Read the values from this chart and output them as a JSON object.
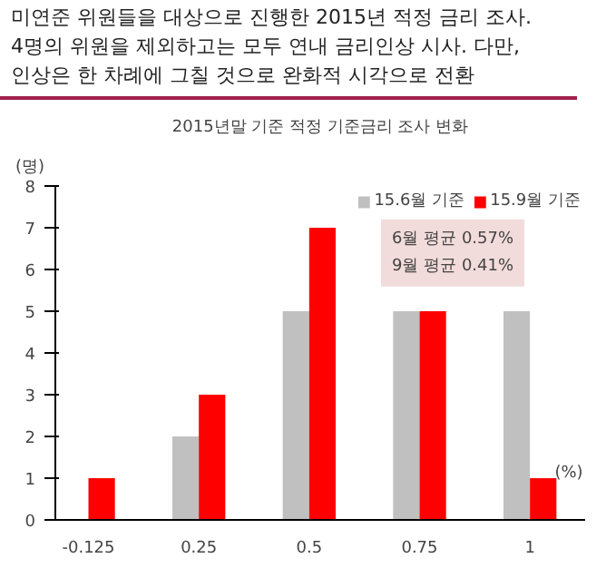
{
  "chart_data": {
    "type": "bar",
    "title": "미연준 위원들을 대상으로 진행한 2015년 적정 금리 조사.\n4명의 위원을 제외하고는 모두 연내 금리인상 시사. 다만,\n인상은 한 차례에 그칠 것으로 완화적 시각으로 전환",
    "subtitle": "2015년말 기준 적정 기준금리 조사 변화",
    "ylabel": "(명)",
    "xlabel": "(%)",
    "categories": [
      "-0.125",
      "0.25",
      "0.5",
      "0.75",
      "1"
    ],
    "series": [
      {
        "name": "15.6월 기준",
        "color": "#c0c0c0",
        "values": [
          0,
          2,
          5,
          5,
          5
        ]
      },
      {
        "name": "15.9월 기준",
        "color": "#ff0000",
        "values": [
          1,
          3,
          7,
          5,
          1
        ]
      }
    ],
    "ylim": [
      0,
      8
    ],
    "yticks": [
      0,
      1,
      2,
      3,
      4,
      5,
      6,
      7,
      8
    ],
    "annotations": [
      "6월 평균 0.57%\n9월 평균 0.41%"
    ],
    "grid": false,
    "legend": "top right"
  }
}
